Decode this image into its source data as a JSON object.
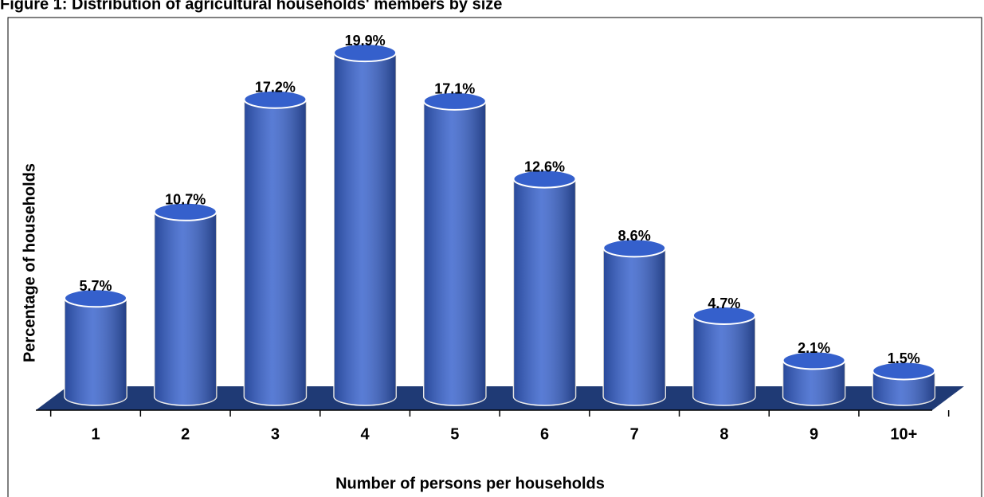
{
  "chart_data": {
    "type": "bar",
    "title": "Figure 1: Distribution of agricultural households' members by size",
    "x_label": "Number of persons per households",
    "y_label": "Percentage of households",
    "categories": [
      "1",
      "2",
      "3",
      "4",
      "5",
      "6",
      "7",
      "8",
      "9",
      "10+"
    ],
    "values": [
      5.7,
      10.7,
      17.2,
      19.9,
      17.1,
      12.6,
      8.6,
      4.7,
      2.1,
      1.5
    ],
    "value_labels": [
      "5.7%",
      "10.7%",
      "17.2%",
      "19.9%",
      "17.1%",
      "12.6%",
      "8.6%",
      "4.7%",
      "2.1%",
      "1.5%"
    ],
    "color": "#3560cc"
  }
}
